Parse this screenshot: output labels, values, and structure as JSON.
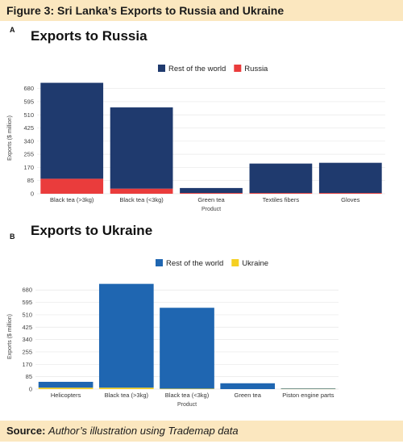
{
  "figure_title": "Figure 3: Sri Lanka’s Exports to Russia and Ukraine",
  "source": {
    "label": "Source:",
    "text": "Author’s illustration using Trademap data"
  },
  "colors": {
    "rest_russia": "#1f3a6e",
    "russia": "#ea3c3c",
    "rest_ukraine": "#1f66b1",
    "ukraine": "#f5d022",
    "grid": "#e8e8e8"
  },
  "chart_data": [
    {
      "panel": "A",
      "type": "bar",
      "stacked": true,
      "title": "Exports to Russia",
      "xlabel": "Product",
      "ylabel": "Exports ($ million)",
      "ylim": [
        0,
        720
      ],
      "yticks": [
        0,
        85,
        170,
        255,
        340,
        425,
        510,
        595,
        680
      ],
      "legend_position": "top-center",
      "categories": [
        "Black tea (>3kg)",
        "Black tea (<3kg)",
        "Green tea",
        "Textiles fibers",
        "Gloves"
      ],
      "series": [
        {
          "name": "Rest of the world",
          "color": "#1f3a6e",
          "values": [
            620,
            525,
            32,
            190,
            195
          ]
        },
        {
          "name": "Russia",
          "color": "#ea3c3c",
          "values": [
            97,
            33,
            5,
            5,
            5
          ]
        }
      ]
    },
    {
      "panel": "B",
      "type": "bar",
      "stacked": true,
      "title": "Exports to Ukraine",
      "xlabel": "Product",
      "ylabel": "Exports ($ million)",
      "ylim": [
        0,
        720
      ],
      "yticks": [
        0,
        85,
        170,
        255,
        340,
        425,
        510,
        595,
        680
      ],
      "legend_position": "top-center",
      "categories": [
        "Helicopters",
        "Black tea (>3kg)",
        "Black tea (<3kg)",
        "Green tea",
        "Piston engine parts"
      ],
      "series": [
        {
          "name": "Rest of the world",
          "color": "#1f66b1",
          "values": [
            40,
            712,
            555,
            40,
            2
          ]
        },
        {
          "name": "Ukraine",
          "color": "#f5d022",
          "values": [
            10,
            10,
            3,
            0,
            3
          ]
        }
      ]
    }
  ]
}
